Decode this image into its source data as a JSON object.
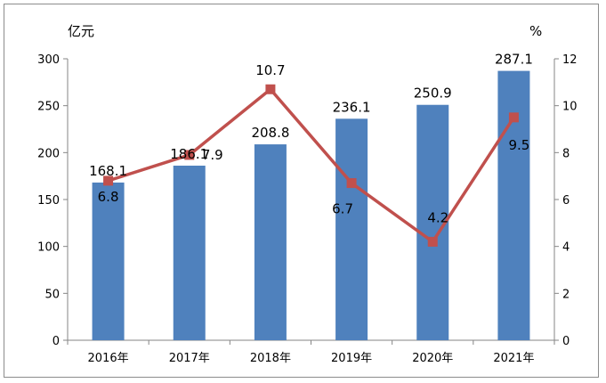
{
  "chart_data": {
    "type": "bar+line",
    "categories": [
      "2016年",
      "2017年",
      "2018年",
      "2019年",
      "2020年",
      "2021年"
    ],
    "series": [
      {
        "values": [
          168.1,
          186.1,
          208.8,
          236.1,
          250.9,
          287.1
        ],
        "axis": "left",
        "kind": "bar"
      },
      {
        "values": [
          6.8,
          7.9,
          10.7,
          6.7,
          4.2,
          9.5
        ],
        "axis": "right",
        "kind": "line"
      }
    ],
    "left_axis": {
      "unit": "亿元",
      "min": 0,
      "max": 300,
      "ticks": [
        0,
        50,
        100,
        150,
        200,
        250,
        300
      ]
    },
    "right_axis": {
      "unit": "%",
      "min": 0,
      "max": 12,
      "ticks": [
        0,
        2,
        4,
        6,
        8,
        10,
        12
      ]
    },
    "bar_labels": [
      "168.1",
      "186.1",
      "208.8",
      "236.1",
      "250.9",
      "287.1"
    ],
    "line_labels": [
      "6.8",
      "7.9",
      "10.7",
      "6.7",
      "4.2",
      "9.5"
    ],
    "grid": false,
    "legend": "none"
  },
  "colors": {
    "bar": "#4f81bd",
    "line": "#c0504d",
    "marker": "#c0504d",
    "axis": "#868686"
  }
}
